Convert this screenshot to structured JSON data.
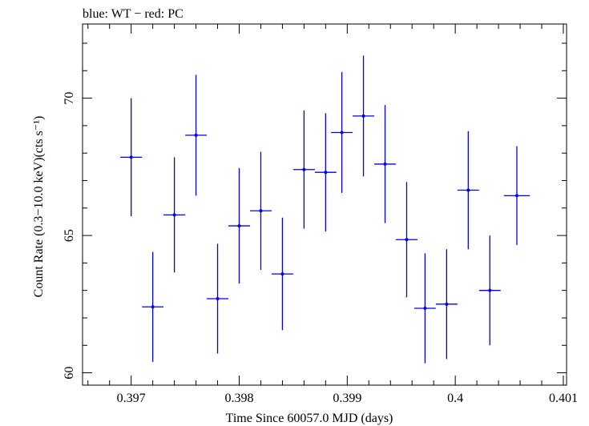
{
  "chart_data": {
    "type": "scatter",
    "title": "blue: WT − red: PC",
    "xlabel": "Time Since 60057.0 MJD (days)",
    "ylabel": "Count Rate (0.3−10.0 keV)(cts s⁻¹)",
    "xlim": [
      0.39655,
      0.40103
    ],
    "ylim": [
      59.55,
      72.7
    ],
    "x_ticks": [
      0.397,
      0.398,
      0.399,
      0.4,
      0.401
    ],
    "x_tick_labels": [
      "0.397",
      "0.398",
      "0.399",
      "0.4",
      "0.401"
    ],
    "y_ticks": [
      60,
      65,
      70
    ],
    "y_tick_labels": [
      "60",
      "65",
      "70"
    ],
    "grid": false,
    "series": [
      {
        "name": "WT",
        "color": "#0000ee",
        "points": [
          {
            "x": 0.397,
            "xerr": 0.0001,
            "y": 67.85,
            "yerr": 2.15
          },
          {
            "x": 0.3972,
            "xerr": 0.0001,
            "y": 62.4,
            "yerr": 2.0
          },
          {
            "x": 0.3974,
            "xerr": 0.0001,
            "y": 65.75,
            "yerr": 2.1
          },
          {
            "x": 0.3976,
            "xerr": 0.0001,
            "y": 68.65,
            "yerr": 2.2
          },
          {
            "x": 0.3978,
            "xerr": 0.0001,
            "y": 62.7,
            "yerr": 2.0
          },
          {
            "x": 0.398,
            "xerr": 0.0001,
            "y": 65.35,
            "yerr": 2.1
          },
          {
            "x": 0.3982,
            "xerr": 0.0001,
            "y": 65.9,
            "yerr": 2.15
          },
          {
            "x": 0.3984,
            "xerr": 0.0001,
            "y": 63.6,
            "yerr": 2.05
          },
          {
            "x": 0.3986,
            "xerr": 0.0001,
            "y": 67.4,
            "yerr": 2.15
          },
          {
            "x": 0.3988,
            "xerr": 0.0001,
            "y": 67.3,
            "yerr": 2.15
          },
          {
            "x": 0.39895,
            "xerr": 0.0001,
            "y": 68.75,
            "yerr": 2.2
          },
          {
            "x": 0.39915,
            "xerr": 0.0001,
            "y": 69.35,
            "yerr": 2.2
          },
          {
            "x": 0.39935,
            "xerr": 0.0001,
            "y": 67.6,
            "yerr": 2.15
          },
          {
            "x": 0.39955,
            "xerr": 0.0001,
            "y": 64.85,
            "yerr": 2.1
          },
          {
            "x": 0.39972,
            "xerr": 0.0001,
            "y": 62.35,
            "yerr": 2.0
          },
          {
            "x": 0.39992,
            "xerr": 0.0001,
            "y": 62.5,
            "yerr": 2.0
          },
          {
            "x": 0.40012,
            "xerr": 0.0001,
            "y": 66.65,
            "yerr": 2.15
          },
          {
            "x": 0.40032,
            "xerr": 0.0001,
            "y": 63.0,
            "yerr": 2.0
          },
          {
            "x": 0.40057,
            "xerr": 0.00012,
            "y": 66.45,
            "yerr": 1.8
          }
        ]
      }
    ]
  }
}
